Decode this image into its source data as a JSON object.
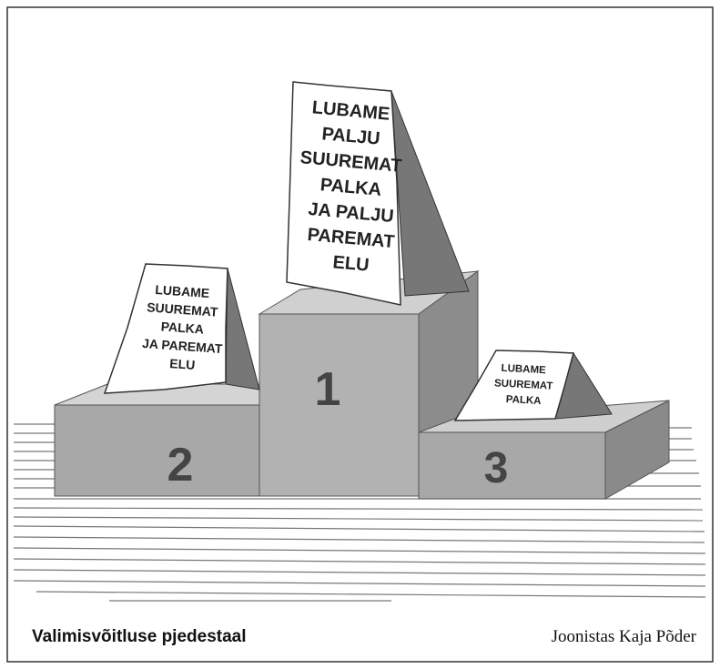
{
  "signs": [
    {
      "lines": [
        "LUBAME",
        "PALJU",
        "SUUREMAT",
        "PALKA",
        "JA PALJU",
        "PAREMAT",
        "ELU"
      ]
    },
    {
      "lines": [
        "LUBAME",
        "SUUREMAT",
        "PALKA",
        "JA PAREMAT",
        "ELU"
      ]
    },
    {
      "lines": [
        "LUBAME",
        "SUUREMAT",
        "PALKA"
      ]
    }
  ],
  "podium": {
    "first": "1",
    "second": "2",
    "third": "3"
  },
  "caption": "Valimisvõitluse pjedestaal",
  "credit": "Joonistas Kaja Põder"
}
